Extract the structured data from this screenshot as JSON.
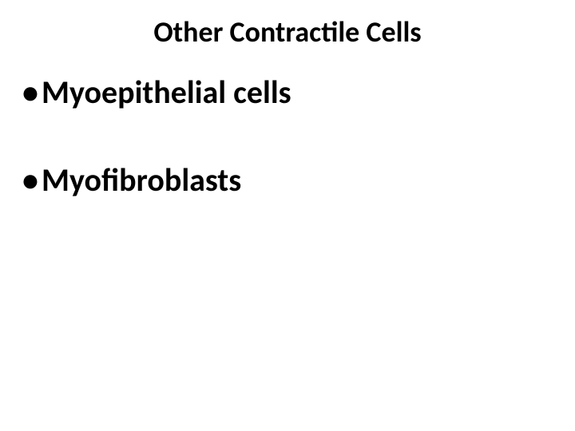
{
  "slide": {
    "title": "Other Contractile Cells",
    "title_fontsize": 36,
    "title_fontweight": "bold",
    "title_color": "#000000",
    "bullets": [
      {
        "text": "Myoepithelial cells"
      },
      {
        "text": "Myofibroblasts"
      }
    ],
    "bullet_fontsize": 40,
    "bullet_fontweight": "bold",
    "bullet_color": "#000000",
    "bullet_gap": 62,
    "background_color": "#ffffff"
  }
}
